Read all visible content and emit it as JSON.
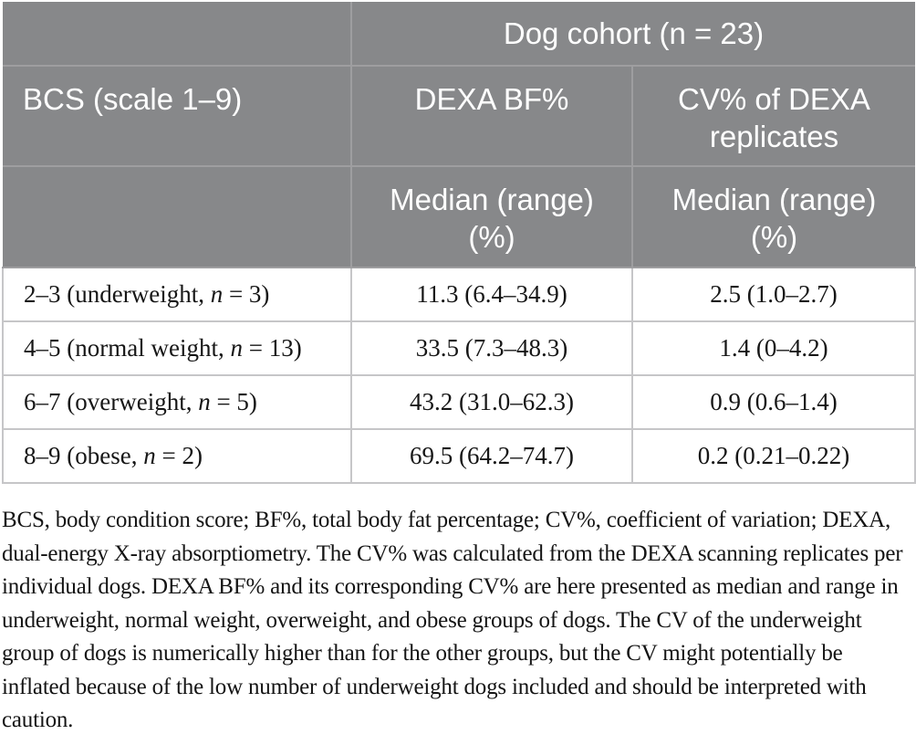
{
  "table": {
    "header": {
      "cohort_label": "Dog cohort (n = 23)",
      "col1_label": "BCS (scale 1–9)",
      "col2_label": "DEXA BF%",
      "col3_label": "CV% of DEXA replicates",
      "col2_sub": "Median (range) (%)",
      "col3_sub": "Median (range) (%)"
    },
    "rows": [
      {
        "bcs_prefix": "2–3 (underweight, ",
        "n_var": "n",
        "bcs_suffix": " = 3)",
        "dexa_bf": "11.3 (6.4–34.9)",
        "cv": "2.5 (1.0–2.7)"
      },
      {
        "bcs_prefix": "4–5 (normal weight, ",
        "n_var": "n",
        "bcs_suffix": " = 13)",
        "dexa_bf": "33.5 (7.3–48.3)",
        "cv": "1.4 (0–4.2)"
      },
      {
        "bcs_prefix": "6–7 (overweight, ",
        "n_var": "n",
        "bcs_suffix": " = 5)",
        "dexa_bf": "43.2 (31.0–62.3)",
        "cv": "0.9 (0.6–1.4)"
      },
      {
        "bcs_prefix": "8–9 (obese, ",
        "n_var": "n",
        "bcs_suffix": " = 2)",
        "dexa_bf": "69.5 (64.2–74.7)",
        "cv": "0.2 (0.21–0.22)"
      }
    ],
    "colors": {
      "header_bg": "#87888a",
      "header_border": "#9e9ea0",
      "header_text": "#ffffff",
      "body_border": "#c6c6c8",
      "body_text": "#161616"
    }
  },
  "chart_data": {
    "type": "table",
    "title": "Dog cohort (n = 23)",
    "columns": [
      "BCS (scale 1–9)",
      "DEXA BF% Median (range) (%)",
      "CV% of DEXA replicates Median (range) (%)"
    ],
    "rows": [
      [
        "2–3 (underweight, n = 3)",
        "11.3 (6.4–34.9)",
        "2.5 (1.0–2.7)"
      ],
      [
        "4–5 (normal weight, n = 13)",
        "33.5 (7.3–48.3)",
        "1.4 (0–4.2)"
      ],
      [
        "6–7 (overweight, n = 5)",
        "43.2 (31.0–62.3)",
        "0.9 (0.6–1.4)"
      ],
      [
        "8–9 (obese, n = 2)",
        "69.5 (64.2–74.7)",
        "0.2 (0.21–0.22)"
      ]
    ]
  },
  "footnote": "BCS, body condition score; BF%, total body fat percentage; CV%, coefficient of variation; DEXA, dual-energy X-ray absorptiometry. The CV% was calculated from the DEXA scanning replicates per individual dogs. DEXA BF% and its corresponding CV% are here presented as median and range in underweight, normal weight, overweight, and obese groups of dogs. The CV of the underweight group of dogs is numerically higher than for the other groups, but the CV might potentially be inflated because of the low number of underweight dogs included and should be interpreted with caution."
}
